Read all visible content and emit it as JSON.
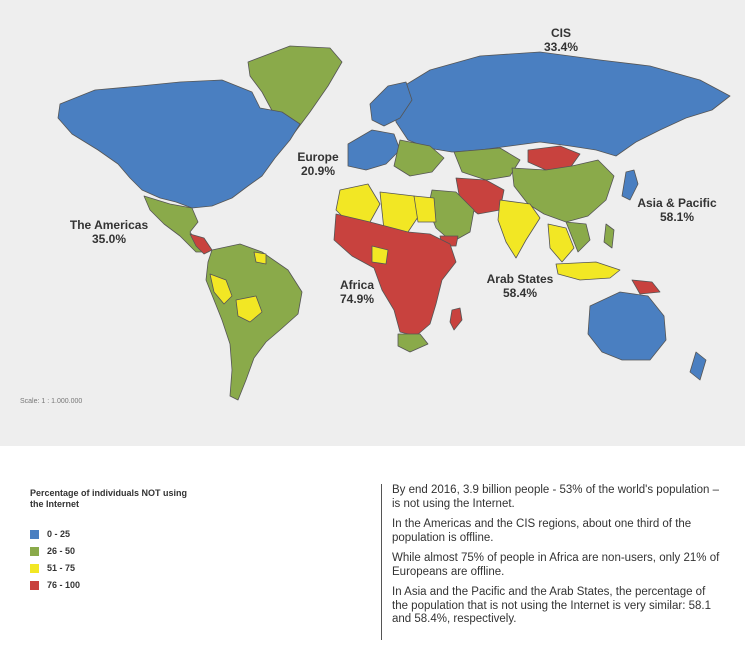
{
  "map": {
    "regions": [
      {
        "id": "cis",
        "name": "CIS",
        "value": "33.4%"
      },
      {
        "id": "europe",
        "name": "Europe",
        "value": "20.9%"
      },
      {
        "id": "asia-pacific",
        "name": "Asia & Pacific",
        "value": "58.1%"
      },
      {
        "id": "americas",
        "name": "The Americas",
        "value": "35.0%"
      },
      {
        "id": "africa",
        "name": "Africa",
        "value": "74.9%"
      },
      {
        "id": "arab-states",
        "name": "Arab States",
        "value": "58.4%"
      }
    ],
    "scale": "Scale: 1 : 1.000.000"
  },
  "legend": {
    "title": "Percentage of individuals NOT using the Internet",
    "items": [
      {
        "label": "0 - 25",
        "color": "#4a7fc1"
      },
      {
        "label": "26 - 50",
        "color": "#8aaa4a"
      },
      {
        "label": "51 - 75",
        "color": "#f2e724"
      },
      {
        "label": "76 - 100",
        "color": "#c8423e"
      }
    ]
  },
  "text": {
    "p1": "By end 2016, 3.9 billion people - 53% of the world's population – is not using the Internet.",
    "p2": "In the Americas and the CIS regions, about one third of the population is offline.",
    "p3": "While almost 75% of people in Africa are non-users, only 21% of Europeans are offline.",
    "p4": "In Asia and the Pacific and the Arab States, the percentage of the population that is not using the Internet is very similar: 58.1 and 58.4%, respectively."
  }
}
